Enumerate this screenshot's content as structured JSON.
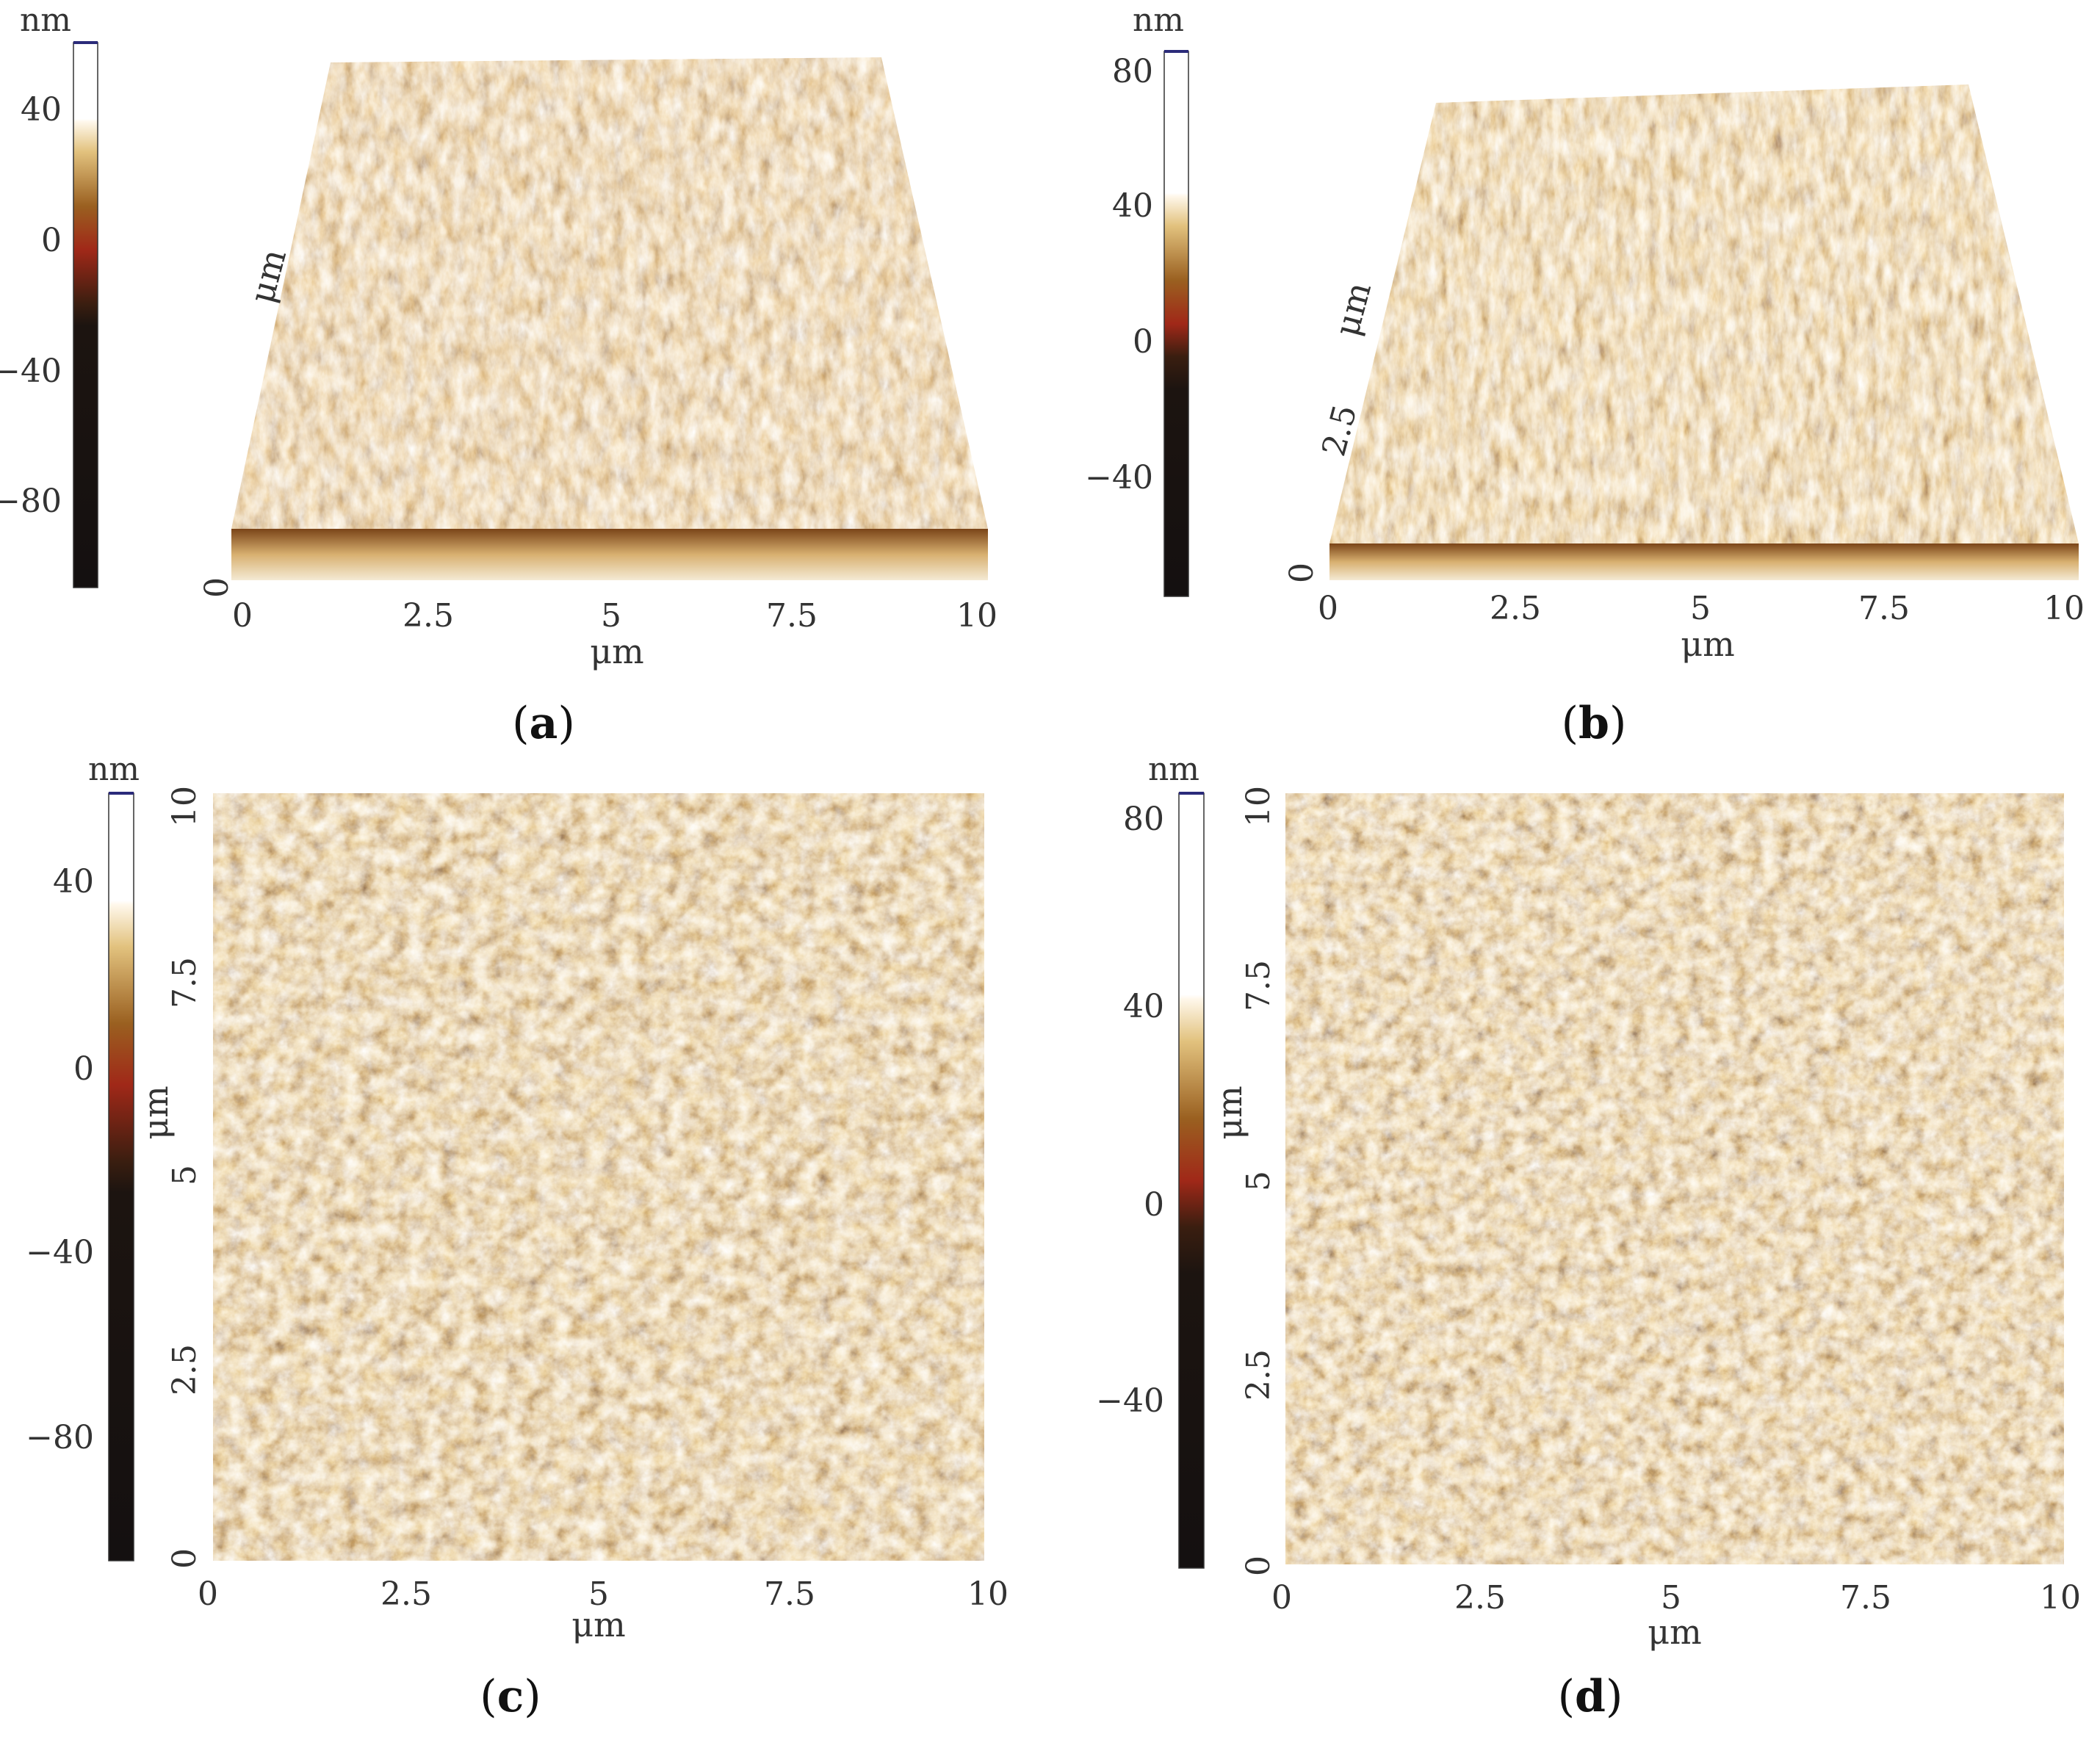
{
  "panels": [
    {
      "id": "a",
      "caption_open": "(",
      "caption_letter": "a",
      "caption_close": ")",
      "scalebar_unit": "nm",
      "scalebar_ticks": [
        "40",
        "0",
        "−40",
        "−80"
      ],
      "x_unit": "μm",
      "y_unit": "μm",
      "x_ticks": [
        "0",
        "2.5",
        "5",
        "7.5",
        "10"
      ],
      "y_ticks": [
        "0"
      ]
    },
    {
      "id": "b",
      "caption_open": "(",
      "caption_letter": "b",
      "caption_close": ")",
      "scalebar_unit": "nm",
      "scalebar_ticks": [
        "80",
        "40",
        "0",
        "−40"
      ],
      "x_unit": "μm",
      "y_unit": "μm",
      "x_ticks": [
        "0",
        "2.5",
        "5",
        "7.5",
        "10"
      ],
      "y_ticks": [
        "0",
        "2.5"
      ]
    },
    {
      "id": "c",
      "caption_open": "(",
      "caption_letter": "c",
      "caption_close": ")",
      "scalebar_unit": "nm",
      "scalebar_ticks": [
        "40",
        "0",
        "−40",
        "−80"
      ],
      "x_unit": "μm",
      "y_unit": "μm",
      "x_ticks": [
        "0",
        "2.5",
        "5",
        "7.5",
        "10"
      ],
      "y_ticks": [
        "0",
        "2.5",
        "5",
        "7.5",
        "10"
      ]
    },
    {
      "id": "d",
      "caption_open": "(",
      "caption_letter": "d",
      "caption_close": ")",
      "scalebar_unit": "nm",
      "scalebar_ticks": [
        "80",
        "40",
        "0",
        "−40"
      ],
      "x_unit": "μm",
      "y_unit": "μm",
      "x_ticks": [
        "0",
        "2.5",
        "5",
        "7.5",
        "10"
      ],
      "y_ticks": [
        "0",
        "2.5",
        "5",
        "7.5",
        "10"
      ]
    }
  ],
  "colors": {
    "afm_dark": "#1a0f08",
    "afm_mid": "#8a4a14",
    "afm_light": "#e8c27a",
    "afm_peak": "#fff6e0",
    "scalebar_top_line": "#2b2b7a"
  }
}
